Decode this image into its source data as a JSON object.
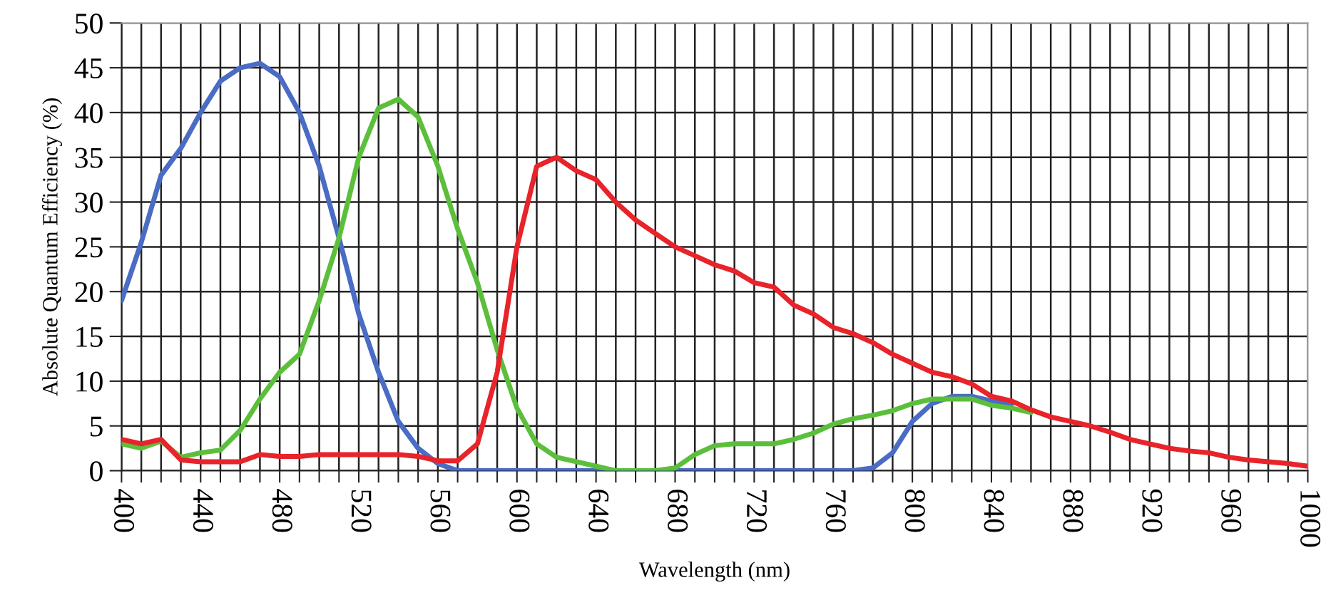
{
  "chart_data": {
    "type": "line",
    "xlabel": "Wavelength (nm)",
    "ylabel": "Absolute Quantum Efficiency (%)",
    "x": [
      400,
      410,
      420,
      430,
      440,
      450,
      460,
      470,
      480,
      490,
      500,
      510,
      520,
      530,
      540,
      550,
      560,
      570,
      580,
      590,
      600,
      610,
      620,
      630,
      640,
      650,
      660,
      670,
      680,
      690,
      700,
      710,
      720,
      730,
      740,
      750,
      760,
      770,
      780,
      790,
      800,
      810,
      820,
      830,
      840,
      850,
      860,
      870,
      880,
      890,
      900,
      910,
      920,
      930,
      940,
      950,
      960,
      970,
      980,
      990,
      1000
    ],
    "series": [
      {
        "color": "#4a6cc4",
        "values": [
          19,
          25.5,
          33,
          36,
          40,
          43.5,
          45,
          45.5,
          44,
          40,
          34,
          26,
          17.5,
          11,
          5.5,
          2.5,
          0.8,
          0,
          0,
          0,
          0,
          0,
          0,
          0,
          0,
          0,
          0,
          0,
          0,
          0,
          0,
          0,
          0,
          0,
          0,
          0,
          0,
          0,
          0.3,
          2,
          5.5,
          7.5,
          8.3,
          8.3,
          7.8,
          7.3,
          null,
          null,
          null,
          null,
          null,
          null,
          null,
          null,
          null,
          null,
          null,
          null,
          null,
          null,
          null
        ]
      },
      {
        "color": "#5cbf3c",
        "values": [
          3,
          2.5,
          3.3,
          1.5,
          2,
          2.3,
          4.5,
          8,
          11,
          13,
          19,
          26,
          35,
          40.5,
          41.5,
          39.5,
          34,
          27,
          21,
          13.5,
          7,
          3,
          1.5,
          1,
          0.5,
          0,
          0,
          0,
          0.3,
          1.8,
          2.8,
          3,
          3,
          3,
          3.5,
          4.2,
          5.2,
          5.8,
          6.2,
          6.7,
          7.5,
          8,
          8,
          8,
          7.3,
          7,
          6.5,
          null,
          null,
          null,
          null,
          null,
          null,
          null,
          null,
          null,
          null,
          null,
          null,
          null,
          null
        ]
      },
      {
        "color": "#e8232a",
        "values": [
          3.5,
          3,
          3.5,
          1.2,
          1,
          1,
          1,
          1.8,
          1.6,
          1.6,
          1.8,
          1.8,
          1.8,
          1.8,
          1.8,
          1.6,
          1.1,
          1.1,
          3,
          11,
          25,
          34,
          35,
          33.5,
          32.5,
          30,
          28,
          26.5,
          25,
          24,
          23,
          22.3,
          21,
          20.5,
          18.5,
          17.5,
          16,
          15.3,
          14.3,
          13,
          12,
          11,
          10.5,
          9.7,
          8.3,
          7.8,
          6.8,
          6,
          5.5,
          5,
          4.3,
          3.5,
          3,
          2.5,
          2.2,
          2,
          1.5,
          1.2,
          1,
          0.8,
          0.5
        ]
      }
    ],
    "xlim": [
      400,
      1000
    ],
    "ylim": [
      0,
      50
    ],
    "xticks": [
      400,
      {
        "value": 410,
        "label": null
      },
      {
        "value": 420,
        "label": null
      },
      {
        "value": 430,
        "label": null
      },
      440,
      {
        "value": 450,
        "label": null
      },
      {
        "value": 460,
        "label": null
      },
      {
        "value": 470,
        "label": null
      },
      480,
      {
        "value": 490,
        "label": null
      },
      {
        "value": 500,
        "label": null
      },
      {
        "value": 510,
        "label": null
      },
      520,
      {
        "value": 530,
        "label": null
      },
      {
        "value": 540,
        "label": null
      },
      {
        "value": 550,
        "label": null
      },
      560,
      {
        "value": 570,
        "label": null
      },
      {
        "value": 580,
        "label": null
      },
      {
        "value": 590,
        "label": null
      },
      600,
      {
        "value": 610,
        "label": null
      },
      {
        "value": 620,
        "label": null
      },
      {
        "value": 630,
        "label": null
      },
      640,
      {
        "value": 650,
        "label": null
      },
      {
        "value": 660,
        "label": null
      },
      {
        "value": 670,
        "label": null
      },
      680,
      {
        "value": 690,
        "label": null
      },
      {
        "value": 700,
        "label": null
      },
      {
        "value": 710,
        "label": null
      },
      720,
      {
        "value": 730,
        "label": null
      },
      {
        "value": 740,
        "label": null
      },
      {
        "value": 750,
        "label": null
      },
      760,
      {
        "value": 770,
        "label": null
      },
      {
        "value": 780,
        "label": null
      },
      {
        "value": 790,
        "label": null
      },
      800,
      {
        "value": 810,
        "label": null
      },
      {
        "value": 820,
        "label": null
      },
      {
        "value": 830,
        "label": null
      },
      840,
      {
        "value": 850,
        "label": null
      },
      {
        "value": 860,
        "label": null
      },
      {
        "value": 870,
        "label": null
      },
      880,
      {
        "value": 890,
        "label": null
      },
      {
        "value": 900,
        "label": null
      },
      {
        "value": 910,
        "label": null
      },
      920,
      {
        "value": 930,
        "label": null
      },
      {
        "value": 940,
        "label": null
      },
      {
        "value": 950,
        "label": null
      },
      960,
      {
        "value": 970,
        "label": null
      },
      {
        "value": 980,
        "label": null
      },
      {
        "value": 990,
        "label": null
      },
      1000
    ],
    "yticks": [
      0,
      5,
      10,
      15,
      20,
      25,
      30,
      35,
      40,
      45,
      50
    ],
    "grid": true,
    "line_style": "solid",
    "marker": "none"
  }
}
